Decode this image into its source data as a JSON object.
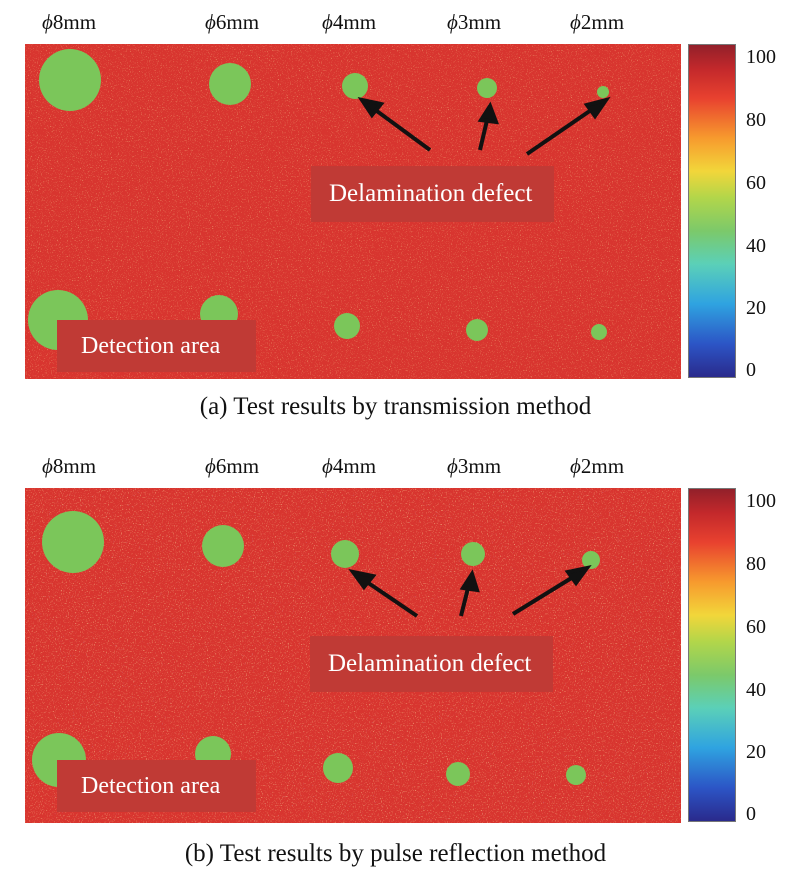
{
  "diameter_symbol": "ϕ",
  "diameters": [
    "8mm",
    "6mm",
    "4mm",
    "3mm",
    "2mm"
  ],
  "labels": {
    "detection_area": "Detection area",
    "delamination_defect": "Delamination defect"
  },
  "colorbar_ticks": [
    "100",
    "80",
    "60",
    "40",
    "20",
    "0"
  ],
  "colorbar_range": [
    0,
    100
  ],
  "panels": [
    {
      "caption": "(a) Test results by transmission method"
    },
    {
      "caption": "(b) Test results by pulse reflection method"
    }
  ],
  "colors": {
    "background_map": "#d8352f",
    "defect": "#7bc65a",
    "label_box": "#c03a35"
  }
}
